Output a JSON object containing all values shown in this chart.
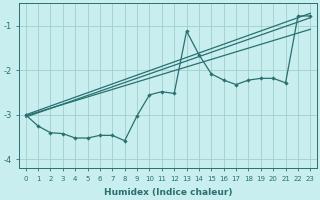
{
  "xlabel": "Humidex (Indice chaleur)",
  "bg_color": "#c8eef0",
  "grid_color": "#a0d0c8",
  "line_color": "#2a7070",
  "xlim": [
    -0.5,
    23.5
  ],
  "ylim": [
    -4.2,
    -0.5
  ],
  "yticks": [
    -4,
    -3,
    -2,
    -1
  ],
  "xticks": [
    0,
    1,
    2,
    3,
    4,
    5,
    6,
    7,
    8,
    9,
    10,
    11,
    12,
    13,
    14,
    15,
    16,
    17,
    18,
    19,
    20,
    21,
    22,
    23
  ],
  "zigzag_x": [
    0,
    1,
    2,
    3,
    4,
    5,
    6,
    7,
    8,
    9,
    10,
    11,
    12,
    13,
    14,
    15,
    16,
    17,
    18,
    19,
    20,
    21,
    22,
    23
  ],
  "zigzag_y": [
    -3.0,
    -3.25,
    -3.4,
    -3.42,
    -3.52,
    -3.52,
    -3.46,
    -3.46,
    -3.58,
    -3.02,
    -2.55,
    -2.48,
    -2.52,
    -1.12,
    -1.65,
    -2.08,
    -2.22,
    -2.32,
    -2.22,
    -2.18,
    -2.18,
    -2.28,
    -0.78,
    -0.78
  ],
  "trend1_x": [
    0,
    23
  ],
  "trend1_y": [
    -3.0,
    -0.72
  ],
  "trend2_x": [
    0,
    23
  ],
  "trend2_y": [
    -3.05,
    -0.82
  ],
  "trend3_x": [
    0,
    23
  ],
  "trend3_y": [
    -3.02,
    -1.08
  ]
}
